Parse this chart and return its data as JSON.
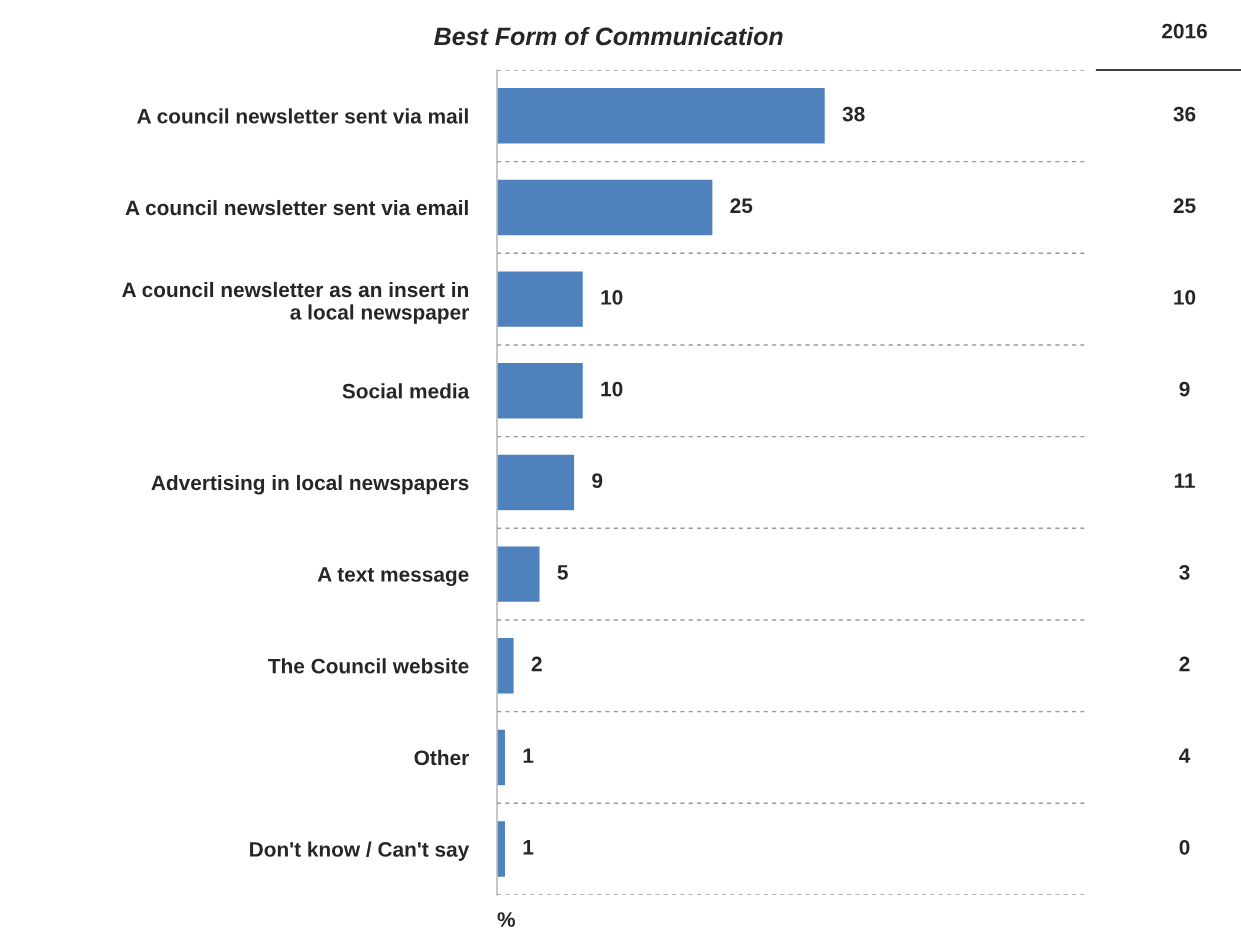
{
  "chart_data": {
    "type": "bar",
    "orientation": "horizontal",
    "title": "Best Form of Communication",
    "xlabel": "%",
    "categories": [
      "A council newsletter sent via mail",
      "A council newsletter sent via email",
      "A council newsletter as an insert in\na local newspaper",
      "Social media",
      "Advertising in local newspapers",
      "A text message",
      "The Council website",
      "Other",
      "Don't know / Can't say"
    ],
    "values": [
      38,
      25,
      10,
      10,
      9,
      5,
      2,
      1,
      1
    ],
    "color": "#4f81bd",
    "xlim": [
      0,
      68
    ],
    "data_labels": true,
    "tick_labels": "y",
    "grid": "y",
    "annotations": [
      "2016",
      "36",
      "25",
      "10",
      "9",
      "11",
      "3",
      "2",
      "4",
      "0"
    ]
  }
}
